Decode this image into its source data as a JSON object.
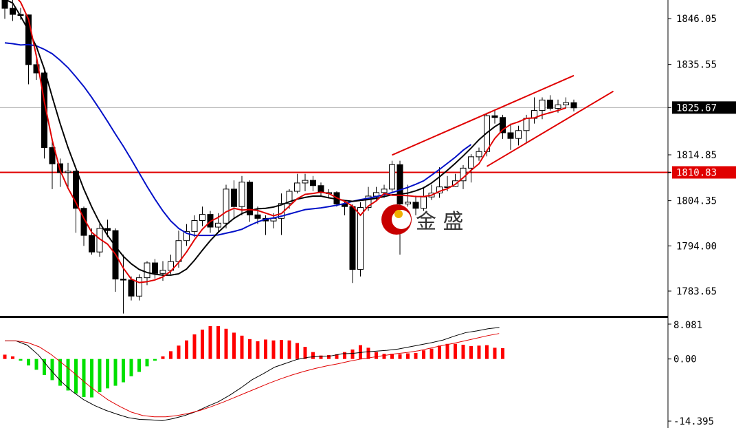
{
  "chart_data": [
    {
      "type": "candlestick",
      "title": "",
      "y_axis": {
        "ticks": [
          "1846.05",
          "1835.55",
          "1825.67",
          "1814.85",
          "1810.83",
          "1804.35",
          "1794.00",
          "1783.65"
        ],
        "range": [
          1776.0,
          1853.0
        ]
      },
      "current_price": {
        "value": 1825.67,
        "label": "1825.67"
      },
      "horizontal_line": {
        "value": 1810.83,
        "label": "1810.83",
        "color": "#e00000"
      },
      "candles": [
        [
          1852.8,
          1848.4,
          1853.0,
          1846.0
        ],
        [
          1848.4,
          1847.0,
          1851.0,
          1845.5
        ],
        [
          1847.0,
          1846.9,
          1848.5,
          1845.8
        ],
        [
          1846.9,
          1835.5,
          1847.0,
          1831.0
        ],
        [
          1835.5,
          1833.6,
          1838.0,
          1832.0
        ],
        [
          1833.6,
          1816.5,
          1834.0,
          1814.0
        ],
        [
          1816.5,
          1812.8,
          1818.0,
          1807.0
        ],
        [
          1812.8,
          1810.8,
          1814.0,
          1807.5
        ],
        [
          1810.8,
          1811.1,
          1813.0,
          1807.0
        ],
        [
          1811.1,
          1802.6,
          1812.0,
          1797.0
        ],
        [
          1802.6,
          1796.4,
          1803.0,
          1794.0
        ],
        [
          1796.4,
          1792.6,
          1798.0,
          1792.0
        ],
        [
          1792.6,
          1798.0,
          1799.0,
          1791.5
        ],
        [
          1798.0,
          1797.5,
          1800.0,
          1796.0
        ],
        [
          1797.5,
          1786.4,
          1798.0,
          1783.5
        ],
        [
          1786.4,
          1786.2,
          1792.0,
          1778.5
        ],
        [
          1786.2,
          1782.5,
          1787.0,
          1781.5
        ],
        [
          1782.5,
          1786.7,
          1787.5,
          1781.5
        ],
        [
          1786.7,
          1790.1,
          1790.5,
          1785.0
        ],
        [
          1790.1,
          1787.7,
          1791.0,
          1786.5
        ],
        [
          1787.7,
          1788.4,
          1790.5,
          1786.0
        ],
        [
          1788.4,
          1790.4,
          1792.0,
          1787.5
        ],
        [
          1790.4,
          1795.2,
          1797.5,
          1789.0
        ],
        [
          1795.2,
          1797.3,
          1799.0,
          1794.0
        ],
        [
          1797.3,
          1799.8,
          1801.0,
          1796.0
        ],
        [
          1799.8,
          1801.2,
          1803.0,
          1798.5
        ],
        [
          1801.2,
          1798.3,
          1802.0,
          1797.0
        ],
        [
          1798.3,
          1799.2,
          1801.5,
          1797.0
        ],
        [
          1799.2,
          1807.0,
          1808.0,
          1798.0
        ],
        [
          1807.0,
          1803.0,
          1809.0,
          1800.5
        ],
        [
          1803.0,
          1808.6,
          1810.0,
          1801.0
        ],
        [
          1808.6,
          1801.1,
          1809.0,
          1799.5
        ],
        [
          1801.1,
          1800.3,
          1803.0,
          1799.0
        ],
        [
          1800.3,
          1799.7,
          1801.0,
          1796.5
        ],
        [
          1799.7,
          1800.3,
          1801.5,
          1798.0
        ],
        [
          1800.3,
          1803.7,
          1806.0,
          1796.5
        ],
        [
          1803.7,
          1806.5,
          1807.0,
          1802.5
        ],
        [
          1806.5,
          1808.4,
          1810.5,
          1806.0
        ],
        [
          1808.4,
          1809.0,
          1810.5,
          1806.5
        ],
        [
          1809.0,
          1807.8,
          1810.0,
          1806.5
        ],
        [
          1807.8,
          1806.2,
          1808.5,
          1805.5
        ],
        [
          1806.2,
          1806.2,
          1807.0,
          1805.0
        ],
        [
          1806.2,
          1803.6,
          1806.5,
          1803.0
        ],
        [
          1803.6,
          1803.0,
          1804.5,
          1801.0
        ],
        [
          1803.0,
          1788.6,
          1803.5,
          1785.5
        ],
        [
          1788.6,
          1802.8,
          1804.0,
          1787.0
        ],
        [
          1802.8,
          1805.4,
          1807.5,
          1802.0
        ],
        [
          1805.4,
          1806.2,
          1807.5,
          1804.5
        ],
        [
          1806.2,
          1807.0,
          1808.0,
          1805.0
        ],
        [
          1807.0,
          1812.6,
          1813.5,
          1806.0
        ],
        [
          1812.6,
          1803.6,
          1813.5,
          1792.0
        ],
        [
          1803.6,
          1804.0,
          1808.0,
          1803.0
        ],
        [
          1804.0,
          1802.6,
          1805.5,
          1801.0
        ],
        [
          1802.6,
          1805.2,
          1807.5,
          1802.0
        ],
        [
          1805.2,
          1806.1,
          1808.0,
          1804.5
        ],
        [
          1806.1,
          1807.5,
          1812.0,
          1805.0
        ],
        [
          1807.5,
          1807.6,
          1810.0,
          1806.5
        ],
        [
          1807.6,
          1808.9,
          1810.5,
          1807.5
        ],
        [
          1808.9,
          1811.8,
          1812.5,
          1807.0
        ],
        [
          1811.8,
          1814.4,
          1815.0,
          1808.5
        ],
        [
          1814.4,
          1815.6,
          1816.5,
          1813.5
        ],
        [
          1815.6,
          1823.8,
          1824.5,
          1814.5
        ],
        [
          1823.8,
          1823.4,
          1825.0,
          1822.0
        ],
        [
          1823.4,
          1819.9,
          1824.0,
          1818.5
        ],
        [
          1819.9,
          1818.6,
          1822.0,
          1816.0
        ],
        [
          1818.6,
          1820.4,
          1821.5,
          1817.0
        ],
        [
          1820.4,
          1823.2,
          1824.0,
          1817.5
        ],
        [
          1823.2,
          1825.0,
          1828.0,
          1822.0
        ],
        [
          1825.0,
          1827.4,
          1828.0,
          1823.0
        ],
        [
          1827.4,
          1825.5,
          1828.5,
          1825.0
        ],
        [
          1825.5,
          1826.3,
          1827.5,
          1824.5
        ],
        [
          1826.3,
          1826.8,
          1828.0,
          1825.5
        ],
        [
          1826.8,
          1825.6,
          1827.5,
          1824.8
        ]
      ],
      "ma_red": [
        1852.2,
        1851.8,
        1849.8,
        1845.9,
        1837.4,
        1827.0,
        1818.2,
        1811.3,
        1807.2,
        1803.9,
        1800.3,
        1797.1,
        1795.6,
        1794.4,
        1792.1,
        1788.9,
        1786.4,
        1785.6,
        1785.8,
        1786.2,
        1786.9,
        1788.2,
        1790.2,
        1792.6,
        1795.4,
        1797.8,
        1799.6,
        1800.5,
        1801.8,
        1802.6,
        1802.2,
        1802.3,
        1802.1,
        1801.5,
        1800.9,
        1801.4,
        1803.1,
        1804.8,
        1805.8,
        1806.0,
        1806.3,
        1806.0,
        1805.0,
        1804.2,
        1803.1,
        1801.0,
        1803.1,
        1804.3,
        1806.0,
        1805.6,
        1805.6,
        1805.5,
        1805.3,
        1805.3,
        1805.6,
        1806.5,
        1807.1,
        1808.1,
        1809.6,
        1811.3,
        1812.8,
        1815.8,
        1818.6,
        1820.6,
        1821.8,
        1822.4,
        1823.2,
        1823.3,
        1824.0,
        1824.5,
        1825.0,
        1825.6
      ],
      "ma_black": [
        1850.5,
        1849.6,
        1846.6,
        1843.3,
        1839.6,
        1834.5,
        1828.1,
        1822.0,
        1816.5,
        1811.7,
        1807.0,
        1802.9,
        1799.3,
        1796.4,
        1793.9,
        1791.6,
        1789.9,
        1788.6,
        1787.9,
        1787.5,
        1787.3,
        1787.3,
        1787.6,
        1788.7,
        1790.7,
        1793.0,
        1795.2,
        1797.1,
        1798.8,
        1800.3,
        1801.4,
        1802.1,
        1802.5,
        1802.6,
        1802.9,
        1803.4,
        1804.1,
        1804.7,
        1805.1,
        1805.4,
        1805.4,
        1805.0,
        1804.7,
        1804.4,
        1804.2,
        1804.4,
        1804.6,
        1804.9,
        1805.3,
        1805.7,
        1805.8,
        1806.1,
        1806.6,
        1807.3,
        1808.4,
        1809.8,
        1811.3,
        1812.9,
        1814.6,
        1816.4,
        1818.3,
        1819.9,
        1821.3,
        1822.4
      ],
      "ma_blue": [
        1840.5,
        1840.3,
        1840.0,
        1840.1,
        1839.8,
        1839.0,
        1838.0,
        1836.5,
        1834.8,
        1832.7,
        1830.5,
        1828.0,
        1825.3,
        1822.5,
        1819.6,
        1816.8,
        1813.8,
        1810.7,
        1807.6,
        1804.7,
        1802.0,
        1799.7,
        1798.0,
        1796.9,
        1796.4,
        1796.4,
        1796.4,
        1796.5,
        1796.9,
        1797.3,
        1797.8,
        1798.7,
        1799.5,
        1800.1,
        1800.4,
        1800.8,
        1801.3,
        1801.8,
        1802.3,
        1802.5,
        1802.7,
        1803.0,
        1803.3,
        1803.7,
        1804.2,
        1804.6,
        1804.9,
        1805.3,
        1805.7,
        1806.2,
        1806.8,
        1807.4,
        1808.1,
        1808.9,
        1810.2,
        1811.5,
        1812.9,
        1814.3,
        1815.9,
        1817.2
      ],
      "trend_lines": [
        {
          "from": [
            49,
            1814.8
          ],
          "to": [
            72,
            1833.0
          ]
        },
        {
          "from": [
            61,
            1812.2
          ],
          "to": [
            77,
            1829.4
          ]
        }
      ]
    },
    {
      "type": "bar",
      "title": "",
      "y_axis": {
        "ticks": [
          "8.081",
          "0.00",
          "-14.395"
        ],
        "range": [
          -14.395,
          8.081
        ]
      },
      "histogram": [
        1.0,
        0.6,
        -0.4,
        -1.5,
        -2.5,
        -3.7,
        -4.9,
        -6.2,
        -7.3,
        -8.0,
        -8.8,
        -8.9,
        -7.7,
        -6.8,
        -6.2,
        -5.4,
        -4.0,
        -3.0,
        -1.7,
        -0.4,
        0.6,
        1.8,
        3.1,
        4.3,
        5.7,
        6.8,
        7.6,
        7.6,
        7.0,
        6.1,
        5.4,
        4.6,
        4.1,
        4.5,
        4.3,
        4.4,
        4.3,
        3.7,
        2.8,
        1.6,
        0.8,
        0.9,
        1.1,
        1.6,
        2.2,
        3.2,
        2.6,
        1.6,
        1.2,
        1.2,
        1.1,
        1.3,
        1.4,
        2.0,
        2.4,
        3.1,
        3.5,
        3.5,
        3.3,
        3.0,
        3.1,
        3.2,
        2.6,
        2.5
      ],
      "macd_black": [
        4.2,
        4.2,
        3.2,
        0.9,
        -2.3,
        -5.2,
        -7.5,
        -9.4,
        -10.8,
        -11.9,
        -12.8,
        -13.6,
        -14.0,
        -14.1,
        -14.3,
        -13.8,
        -13.1,
        -12.2,
        -11.0,
        -9.9,
        -8.4,
        -6.7,
        -4.8,
        -3.4,
        -1.9,
        -1.0,
        -0.1,
        0.4,
        0.6,
        0.7,
        1.2,
        1.3,
        1.6,
        1.8,
        2.0,
        2.3,
        2.8,
        3.3,
        3.8,
        4.4,
        5.3,
        6.1,
        6.5,
        7.0,
        7.3
      ],
      "macd_red": [
        4.2,
        4.2,
        3.8,
        2.8,
        1.1,
        -1.0,
        -3.2,
        -5.5,
        -7.6,
        -9.5,
        -11.0,
        -12.3,
        -13.1,
        -13.4,
        -13.4,
        -13.1,
        -12.6,
        -11.9,
        -11.0,
        -10.0,
        -8.9,
        -7.8,
        -6.7,
        -5.6,
        -4.6,
        -3.7,
        -2.9,
        -2.2,
        -1.6,
        -1.1,
        -0.5,
        0.0,
        0.4,
        0.8,
        1.2,
        1.5,
        1.9,
        2.5,
        3.1,
        3.6,
        4.2,
        4.8,
        5.4,
        5.9
      ]
    }
  ],
  "watermark": {
    "text": "金 盛"
  },
  "colors": {
    "bull_candle": "#ffffff",
    "bear_candle": "#000000",
    "ma_red": "#e00000",
    "ma_black": "#000000",
    "ma_blue": "#0010c8",
    "hist_up": "#ff0000",
    "hist_down": "#00e000",
    "price_tag_bg": "#000000",
    "line_tag_bg": "#e00000"
  }
}
